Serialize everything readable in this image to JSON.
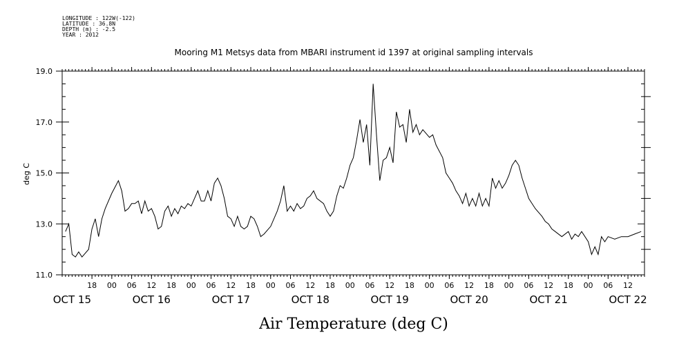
{
  "header": {
    "lines": [
      "LONGITUDE : 122W(-122)",
      "LATITUDE : 36.8N",
      "DEPTH (m) : -2.5",
      "YEAR : 2012"
    ]
  },
  "chart_data": {
    "type": "line",
    "title": "Mooring M1 Metsys data from MBARI instrument id 1397 at original sampling intervals",
    "xlabel": "Air Temperature (deg C)",
    "ylabel": "deg C",
    "ylim": [
      11.0,
      19.0
    ],
    "yticks": [
      "11.0",
      "13.0",
      "15.0",
      "17.0",
      "19.0"
    ],
    "xlim": [
      "2012-10-15T09:00",
      "2012-10-22T17:00"
    ],
    "hour_ticks": [
      {
        "t": "2012-10-15T18:00",
        "label": "18"
      },
      {
        "t": "2012-10-16T00:00",
        "label": "00"
      },
      {
        "t": "2012-10-16T06:00",
        "label": "06"
      },
      {
        "t": "2012-10-16T12:00",
        "label": "12"
      },
      {
        "t": "2012-10-16T18:00",
        "label": "18"
      },
      {
        "t": "2012-10-17T00:00",
        "label": "00"
      },
      {
        "t": "2012-10-17T06:00",
        "label": "06"
      },
      {
        "t": "2012-10-17T12:00",
        "label": "12"
      },
      {
        "t": "2012-10-17T18:00",
        "label": "18"
      },
      {
        "t": "2012-10-18T00:00",
        "label": "00"
      },
      {
        "t": "2012-10-18T06:00",
        "label": "06"
      },
      {
        "t": "2012-10-18T12:00",
        "label": "12"
      },
      {
        "t": "2012-10-18T18:00",
        "label": "18"
      },
      {
        "t": "2012-10-19T00:00",
        "label": "00"
      },
      {
        "t": "2012-10-19T06:00",
        "label": "06"
      },
      {
        "t": "2012-10-19T12:00",
        "label": "12"
      },
      {
        "t": "2012-10-19T18:00",
        "label": "18"
      },
      {
        "t": "2012-10-20T00:00",
        "label": "00"
      },
      {
        "t": "2012-10-20T06:00",
        "label": "06"
      },
      {
        "t": "2012-10-20T12:00",
        "label": "12"
      },
      {
        "t": "2012-10-20T18:00",
        "label": "18"
      },
      {
        "t": "2012-10-21T00:00",
        "label": "00"
      },
      {
        "t": "2012-10-21T06:00",
        "label": "06"
      },
      {
        "t": "2012-10-21T12:00",
        "label": "12"
      },
      {
        "t": "2012-10-21T18:00",
        "label": "18"
      },
      {
        "t": "2012-10-22T00:00",
        "label": "00"
      },
      {
        "t": "2012-10-22T06:00",
        "label": "06"
      },
      {
        "t": "2012-10-22T12:00",
        "label": "12"
      }
    ],
    "date_labels": [
      {
        "t": "2012-10-15T12:00",
        "label": "OCT 15"
      },
      {
        "t": "2012-10-16T12:00",
        "label": "OCT 16"
      },
      {
        "t": "2012-10-17T12:00",
        "label": "OCT 17"
      },
      {
        "t": "2012-10-18T12:00",
        "label": "OCT 18"
      },
      {
        "t": "2012-10-19T12:00",
        "label": "OCT 19"
      },
      {
        "t": "2012-10-20T12:00",
        "label": "OCT 20"
      },
      {
        "t": "2012-10-21T12:00",
        "label": "OCT 21"
      },
      {
        "t": "2012-10-22T12:00",
        "label": "OCT 22"
      }
    ],
    "series": [
      {
        "color": "#000000",
        "points": [
          [
            "2012-10-15T10:00",
            12.7
          ],
          [
            "2012-10-15T11:00",
            13.0
          ],
          [
            "2012-10-15T12:00",
            11.8
          ],
          [
            "2012-10-15T13:00",
            11.7
          ],
          [
            "2012-10-15T14:00",
            11.9
          ],
          [
            "2012-10-15T15:00",
            11.7
          ],
          [
            "2012-10-15T17:00",
            12.0
          ],
          [
            "2012-10-15T18:00",
            12.8
          ],
          [
            "2012-10-15T19:00",
            13.2
          ],
          [
            "2012-10-15T20:00",
            12.5
          ],
          [
            "2012-10-15T21:00",
            13.2
          ],
          [
            "2012-10-15T22:00",
            13.6
          ],
          [
            "2012-10-16T00:00",
            14.2
          ],
          [
            "2012-10-16T02:00",
            14.7
          ],
          [
            "2012-10-16T03:00",
            14.3
          ],
          [
            "2012-10-16T04:00",
            13.5
          ],
          [
            "2012-10-16T05:00",
            13.6
          ],
          [
            "2012-10-16T06:00",
            13.8
          ],
          [
            "2012-10-16T07:00",
            13.8
          ],
          [
            "2012-10-16T08:00",
            13.9
          ],
          [
            "2012-10-16T09:00",
            13.4
          ],
          [
            "2012-10-16T10:00",
            13.9
          ],
          [
            "2012-10-16T11:00",
            13.5
          ],
          [
            "2012-10-16T12:00",
            13.6
          ],
          [
            "2012-10-16T13:00",
            13.3
          ],
          [
            "2012-10-16T14:00",
            12.8
          ],
          [
            "2012-10-16T15:00",
            12.9
          ],
          [
            "2012-10-16T16:00",
            13.5
          ],
          [
            "2012-10-16T17:00",
            13.7
          ],
          [
            "2012-10-16T18:00",
            13.3
          ],
          [
            "2012-10-16T19:00",
            13.6
          ],
          [
            "2012-10-16T20:00",
            13.4
          ],
          [
            "2012-10-16T21:00",
            13.7
          ],
          [
            "2012-10-16T22:00",
            13.6
          ],
          [
            "2012-10-16T23:00",
            13.8
          ],
          [
            "2012-10-17T00:00",
            13.7
          ],
          [
            "2012-10-17T02:00",
            14.3
          ],
          [
            "2012-10-17T03:00",
            13.9
          ],
          [
            "2012-10-17T04:00",
            13.9
          ],
          [
            "2012-10-17T05:00",
            14.3
          ],
          [
            "2012-10-17T06:00",
            13.9
          ],
          [
            "2012-10-17T07:00",
            14.6
          ],
          [
            "2012-10-17T08:00",
            14.8
          ],
          [
            "2012-10-17T09:00",
            14.5
          ],
          [
            "2012-10-17T10:00",
            14.0
          ],
          [
            "2012-10-17T11:00",
            13.3
          ],
          [
            "2012-10-17T12:00",
            13.2
          ],
          [
            "2012-10-17T13:00",
            12.9
          ],
          [
            "2012-10-17T14:00",
            13.3
          ],
          [
            "2012-10-17T15:00",
            12.9
          ],
          [
            "2012-10-17T16:00",
            12.8
          ],
          [
            "2012-10-17T17:00",
            12.9
          ],
          [
            "2012-10-17T18:00",
            13.3
          ],
          [
            "2012-10-17T19:00",
            13.2
          ],
          [
            "2012-10-17T20:00",
            12.9
          ],
          [
            "2012-10-17T21:00",
            12.5
          ],
          [
            "2012-10-17T22:00",
            12.6
          ],
          [
            "2012-10-18T00:00",
            12.9
          ],
          [
            "2012-10-18T02:00",
            13.5
          ],
          [
            "2012-10-18T03:00",
            13.9
          ],
          [
            "2012-10-18T04:00",
            14.5
          ],
          [
            "2012-10-18T05:00",
            13.5
          ],
          [
            "2012-10-18T06:00",
            13.7
          ],
          [
            "2012-10-18T07:00",
            13.5
          ],
          [
            "2012-10-18T08:00",
            13.8
          ],
          [
            "2012-10-18T09:00",
            13.6
          ],
          [
            "2012-10-18T10:00",
            13.7
          ],
          [
            "2012-10-18T11:00",
            14.0
          ],
          [
            "2012-10-18T12:00",
            14.1
          ],
          [
            "2012-10-18T13:00",
            14.3
          ],
          [
            "2012-10-18T14:00",
            14.0
          ],
          [
            "2012-10-18T16:00",
            13.8
          ],
          [
            "2012-10-18T17:00",
            13.5
          ],
          [
            "2012-10-18T18:00",
            13.3
          ],
          [
            "2012-10-18T19:00",
            13.5
          ],
          [
            "2012-10-18T20:00",
            14.1
          ],
          [
            "2012-10-18T21:00",
            14.5
          ],
          [
            "2012-10-18T22:00",
            14.4
          ],
          [
            "2012-10-18T23:00",
            14.8
          ],
          [
            "2012-10-19T00:00",
            15.3
          ],
          [
            "2012-10-19T01:00",
            15.6
          ],
          [
            "2012-10-19T02:00",
            16.3
          ],
          [
            "2012-10-19T03:00",
            17.1
          ],
          [
            "2012-10-19T04:00",
            16.2
          ],
          [
            "2012-10-19T05:00",
            16.9
          ],
          [
            "2012-10-19T06:00",
            15.3
          ],
          [
            "2012-10-19T07:00",
            18.5
          ],
          [
            "2012-10-19T08:00",
            16.5
          ],
          [
            "2012-10-19T09:00",
            14.7
          ],
          [
            "2012-10-19T10:00",
            15.5
          ],
          [
            "2012-10-19T11:00",
            15.6
          ],
          [
            "2012-10-19T12:00",
            16.0
          ],
          [
            "2012-10-19T13:00",
            15.4
          ],
          [
            "2012-10-19T14:00",
            17.4
          ],
          [
            "2012-10-19T15:00",
            16.8
          ],
          [
            "2012-10-19T16:00",
            16.9
          ],
          [
            "2012-10-19T17:00",
            16.2
          ],
          [
            "2012-10-19T18:00",
            17.5
          ],
          [
            "2012-10-19T19:00",
            16.6
          ],
          [
            "2012-10-19T20:00",
            16.9
          ],
          [
            "2012-10-19T21:00",
            16.5
          ],
          [
            "2012-10-19T22:00",
            16.7
          ],
          [
            "2012-10-20T00:00",
            16.4
          ],
          [
            "2012-10-20T01:00",
            16.5
          ],
          [
            "2012-10-20T02:00",
            16.1
          ],
          [
            "2012-10-20T04:00",
            15.6
          ],
          [
            "2012-10-20T05:00",
            15.0
          ],
          [
            "2012-10-20T06:00",
            14.8
          ],
          [
            "2012-10-20T07:00",
            14.6
          ],
          [
            "2012-10-20T08:00",
            14.3
          ],
          [
            "2012-10-20T09:00",
            14.1
          ],
          [
            "2012-10-20T10:00",
            13.8
          ],
          [
            "2012-10-20T11:00",
            14.2
          ],
          [
            "2012-10-20T12:00",
            13.7
          ],
          [
            "2012-10-20T13:00",
            14.0
          ],
          [
            "2012-10-20T14:00",
            13.7
          ],
          [
            "2012-10-20T15:00",
            14.2
          ],
          [
            "2012-10-20T16:00",
            13.7
          ],
          [
            "2012-10-20T17:00",
            14.0
          ],
          [
            "2012-10-20T18:00",
            13.7
          ],
          [
            "2012-10-20T19:00",
            14.8
          ],
          [
            "2012-10-20T20:00",
            14.4
          ],
          [
            "2012-10-20T21:00",
            14.7
          ],
          [
            "2012-10-20T22:00",
            14.4
          ],
          [
            "2012-10-20T23:00",
            14.6
          ],
          [
            "2012-10-21T00:00",
            14.9
          ],
          [
            "2012-10-21T01:00",
            15.3
          ],
          [
            "2012-10-21T02:00",
            15.5
          ],
          [
            "2012-10-21T03:00",
            15.3
          ],
          [
            "2012-10-21T04:00",
            14.8
          ],
          [
            "2012-10-21T05:00",
            14.4
          ],
          [
            "2012-10-21T06:00",
            14.0
          ],
          [
            "2012-10-21T08:00",
            13.6
          ],
          [
            "2012-10-21T10:00",
            13.3
          ],
          [
            "2012-10-21T11:00",
            13.1
          ],
          [
            "2012-10-21T12:00",
            13.0
          ],
          [
            "2012-10-21T13:00",
            12.8
          ],
          [
            "2012-10-21T14:00",
            12.7
          ],
          [
            "2012-10-21T16:00",
            12.5
          ],
          [
            "2012-10-21T18:00",
            12.7
          ],
          [
            "2012-10-21T19:00",
            12.4
          ],
          [
            "2012-10-21T20:00",
            12.6
          ],
          [
            "2012-10-21T21:00",
            12.5
          ],
          [
            "2012-10-21T22:00",
            12.7
          ],
          [
            "2012-10-22T00:00",
            12.3
          ],
          [
            "2012-10-22T01:00",
            11.8
          ],
          [
            "2012-10-22T02:00",
            12.1
          ],
          [
            "2012-10-22T03:00",
            11.8
          ],
          [
            "2012-10-22T04:00",
            12.5
          ],
          [
            "2012-10-22T05:00",
            12.3
          ],
          [
            "2012-10-22T06:00",
            12.5
          ],
          [
            "2012-10-22T08:00",
            12.4
          ],
          [
            "2012-10-22T10:00",
            12.5
          ],
          [
            "2012-10-22T12:00",
            12.5
          ],
          [
            "2012-10-22T14:00",
            12.6
          ],
          [
            "2012-10-22T16:00",
            12.7
          ]
        ]
      }
    ]
  }
}
